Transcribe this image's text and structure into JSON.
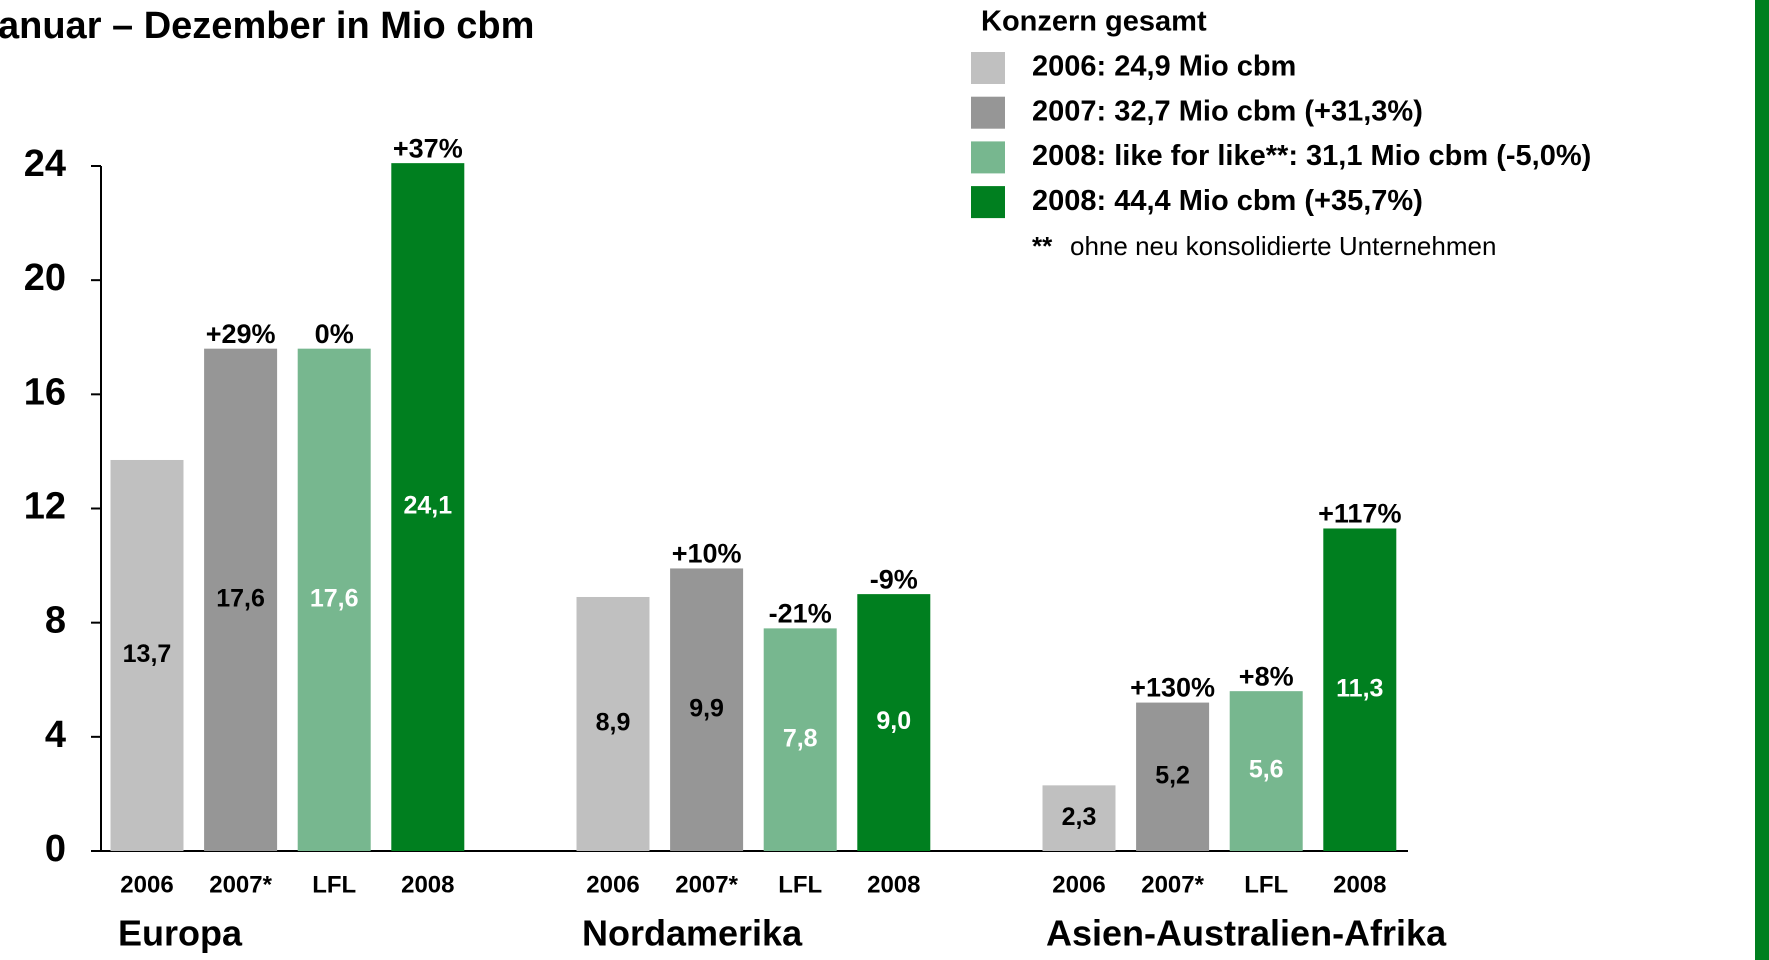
{
  "chart_data": {
    "type": "bar",
    "title": "anuar – Dezember in Mio cbm",
    "categories": [
      "Europa",
      "Nordamerika",
      "Asien-Australien-Afrika"
    ],
    "legend_title": "Konzern gesamt",
    "footnote_mark": "**",
    "footnote": "ohne neu konsolidierte Unternehmen",
    "series": [
      {
        "name": "2006: 24,9 Mio cbm",
        "short": "2006",
        "color": "#c0c0c0",
        "label_color": "#000000",
        "values": [
          13.7,
          8.9,
          2.3
        ],
        "value_labels": [
          "13,7",
          "8,9",
          "2,3"
        ],
        "change_labels": [
          null,
          null,
          null
        ]
      },
      {
        "name": "2007: 32,7 Mio cbm (+31,3%)",
        "short": "2007*",
        "color": "#969696",
        "label_color": "#000000",
        "values": [
          17.6,
          9.9,
          5.2
        ],
        "value_labels": [
          "17,6",
          "9,9",
          "5,2"
        ],
        "change_labels": [
          "+29%",
          "+10%",
          "+130%"
        ]
      },
      {
        "name": "2008: like for like**: 31,1 Mio cbm (-5,0%)",
        "short": "LFL",
        "color": "#77b78f",
        "label_color": "#ffffff",
        "values": [
          17.6,
          7.8,
          5.6
        ],
        "value_labels": [
          "17,6",
          "7,8",
          "5,6"
        ],
        "change_labels": [
          "0%",
          "-21%",
          "+8%"
        ]
      },
      {
        "name": "2008: 44,4 Mio cbm (+35,7%)",
        "short": "2008",
        "color": "#007f1f",
        "label_color": "#ffffff",
        "values": [
          24.1,
          9.0,
          11.3
        ],
        "value_labels": [
          "24,1",
          "9,0",
          "11,3"
        ],
        "change_labels": [
          "+37%",
          "-9%",
          "+117%"
        ]
      }
    ],
    "ylim": [
      0,
      24
    ],
    "yticks": [
      0,
      4,
      8,
      12,
      16,
      20,
      24
    ]
  }
}
